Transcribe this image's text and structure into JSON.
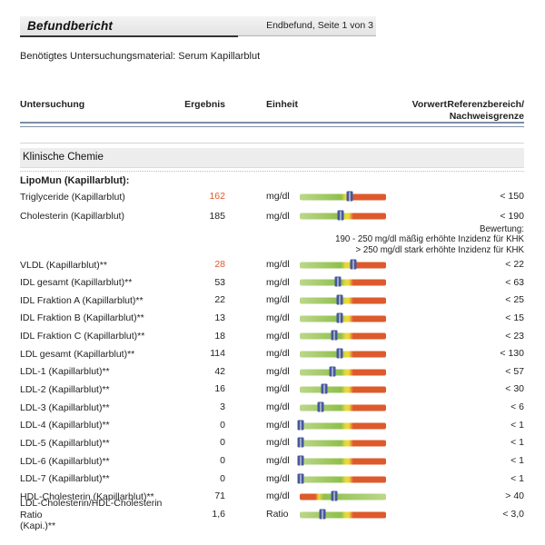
{
  "header": {
    "title": "Befundbericht",
    "page_info": "Endbefund, Seite 1 von 3"
  },
  "material_line": "Benötigtes Untersuchungsmaterial: Serum Kapillarblut",
  "columns": {
    "untersuchung": "Untersuchung",
    "ergebnis": "Ergebnis",
    "einheit": "Einheit",
    "vorwert": "Vorwert",
    "referenz_line1": "Referenzbereich/",
    "referenz_line2": "Nachweisgrenze"
  },
  "section": {
    "title": "Klinische Chemie"
  },
  "group": {
    "title": "LipoMun (Kapillarblut):"
  },
  "bewertung": {
    "label": "Bewertung:",
    "lines": [
      "190 - 250 mg/dl mäßig erhöhte Inzidenz für KHK",
      "> 250 mg/dl stark erhöhte Inzidenz für KHK"
    ]
  },
  "colors": {
    "text": "#1f1f1f",
    "result_high": "#e2572c",
    "bar_green_light": "#bcd78a",
    "bar_green": "#8fbf4c",
    "bar_yellow": "#e9d83b",
    "bar_red": "#dd5a2d",
    "marker_navy": "#47589c",
    "line_slate": "#7d8ea4",
    "section_bg": "#ededed",
    "header_bar_from": "#f3f3f3",
    "header_bar_to": "#e3e3e3"
  },
  "rows_a": [
    {
      "name": "Triglyceride (Kapillarblut)",
      "result": "162",
      "flag": "high",
      "unit": "mg/dl",
      "ref": "< 150",
      "bar": {
        "type": "normal",
        "marker": 0.58
      }
    },
    {
      "name": "Cholesterin (Kapillarblut)",
      "result": "185",
      "flag": "normal",
      "unit": "mg/dl",
      "ref": "< 190",
      "bar": {
        "type": "normal",
        "marker": 0.47
      }
    }
  ],
  "rows_b": [
    {
      "name": "VLDL (Kapillarblut)**",
      "result": "28",
      "flag": "high",
      "unit": "mg/dl",
      "ref": "< 22",
      "bar": {
        "type": "normal",
        "marker": 0.62
      }
    },
    {
      "name": "IDL gesamt (Kapillarblut)**",
      "result": "53",
      "flag": "normal",
      "unit": "mg/dl",
      "ref": "< 63",
      "bar": {
        "type": "normal",
        "marker": 0.44
      }
    },
    {
      "name": "IDL Fraktion A (Kapillarblut)**",
      "result": "22",
      "flag": "normal",
      "unit": "mg/dl",
      "ref": "< 25",
      "bar": {
        "type": "normal",
        "marker": 0.46
      }
    },
    {
      "name": "IDL Fraktion B (Kapillarblut)**",
      "result": "13",
      "flag": "normal",
      "unit": "mg/dl",
      "ref": "< 15",
      "bar": {
        "type": "normal",
        "marker": 0.46
      }
    },
    {
      "name": "IDL Fraktion C (Kapillarblut)**",
      "result": "18",
      "flag": "normal",
      "unit": "mg/dl",
      "ref": "< 23",
      "bar": {
        "type": "normal",
        "marker": 0.4
      }
    },
    {
      "name": "LDL gesamt (Kapillarblut)**",
      "result": "114",
      "flag": "normal",
      "unit": "mg/dl",
      "ref": "< 130",
      "bar": {
        "type": "normal",
        "marker": 0.46
      }
    },
    {
      "name": "LDL-1 (Kapillarblut)**",
      "result": "42",
      "flag": "normal",
      "unit": "mg/dl",
      "ref": "< 57",
      "bar": {
        "type": "normal",
        "marker": 0.38
      }
    },
    {
      "name": "LDL-2 (Kapillarblut)**",
      "result": "16",
      "flag": "normal",
      "unit": "mg/dl",
      "ref": "< 30",
      "bar": {
        "type": "normal",
        "marker": 0.28
      }
    },
    {
      "name": "LDL-3 (Kapillarblut)**",
      "result": "3",
      "flag": "normal",
      "unit": "mg/dl",
      "ref": "< 6",
      "bar": {
        "type": "normal",
        "marker": 0.24
      }
    },
    {
      "name": "LDL-4 (Kapillarblut)**",
      "result": "0",
      "flag": "normal",
      "unit": "mg/dl",
      "ref": "< 1",
      "bar": {
        "type": "normal",
        "marker": 0.01
      }
    },
    {
      "name": "LDL-5 (Kapillarblut)**",
      "result": "0",
      "flag": "normal",
      "unit": "mg/dl",
      "ref": "< 1",
      "bar": {
        "type": "normal",
        "marker": 0.01
      }
    },
    {
      "name": "LDL-6 (Kapillarblut)**",
      "result": "0",
      "flag": "normal",
      "unit": "mg/dl",
      "ref": "< 1",
      "bar": {
        "type": "normal",
        "marker": 0.01
      }
    },
    {
      "name": "LDL-7 (Kapillarblut)**",
      "result": "0",
      "flag": "normal",
      "unit": "mg/dl",
      "ref": "< 1",
      "bar": {
        "type": "normal",
        "marker": 0.01
      }
    },
    {
      "name": "HDL-Cholesterin (Kapillarblut)**",
      "result": "71",
      "flag": "normal",
      "unit": "mg/dl",
      "ref": "> 40",
      "bar": {
        "type": "reversed",
        "marker": 0.4
      }
    },
    {
      "name": "LDL-Cholesterin/HDL-Cholesterin Ratio",
      "name2": "(Kapi.)**",
      "result": "1,6",
      "flag": "normal",
      "unit": "Ratio",
      "ref": "< 3,0",
      "bar": {
        "type": "normal",
        "marker": 0.26
      }
    }
  ]
}
